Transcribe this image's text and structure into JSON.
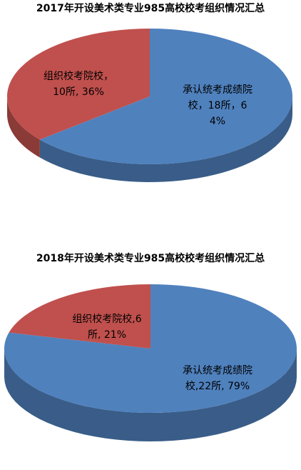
{
  "chart_data": [
    {
      "type": "pie",
      "title": "2017年开设美术类专业985高校校考组织情况汇总",
      "categories": [
        "组织校考院校",
        "承认统考成绩院校"
      ],
      "values": [
        36,
        64
      ],
      "value_labels": [
        "组织校考院校，10所, 36%",
        "承认统考成绩院校，18所，64%"
      ],
      "colors": [
        "#c0504d",
        "#4f81bd"
      ]
    },
    {
      "type": "pie",
      "title": "2018年开设美术类专业985高校校考组织情况汇总",
      "categories": [
        "组织校考院校",
        "承认统考成绩院校"
      ],
      "values": [
        21,
        79
      ],
      "value_labels": [
        "组织校考院校,6所, 21%",
        "承认统考成绩院校,22所, 79%"
      ],
      "colors": [
        "#c0504d",
        "#4f81bd"
      ]
    }
  ]
}
